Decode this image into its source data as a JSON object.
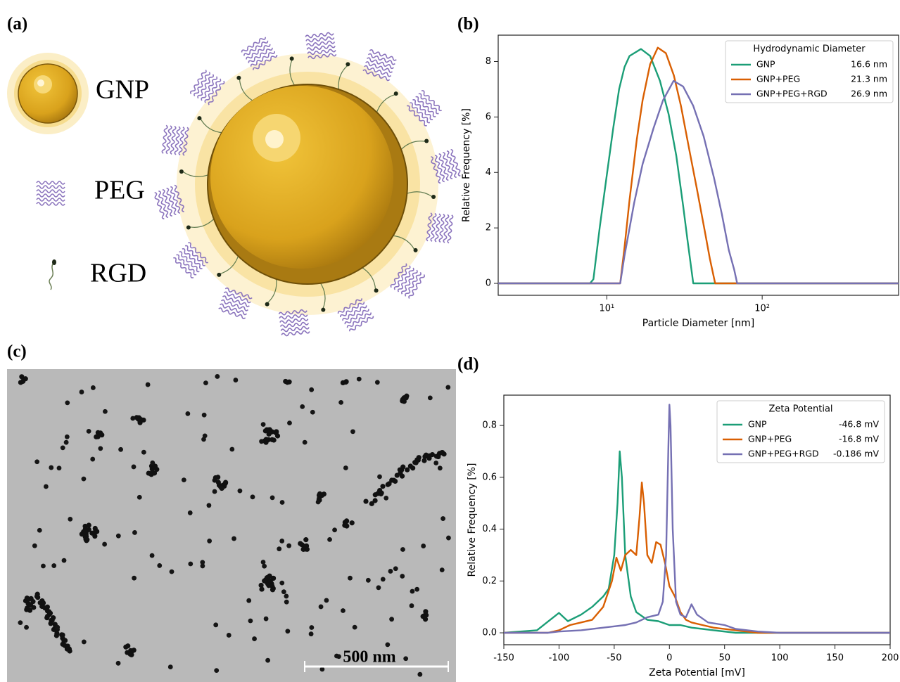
{
  "panel_labels": [
    "(a)",
    "(b)",
    "(c)",
    "(d)"
  ],
  "diagram": {
    "labels": [
      "GNP",
      "PEG",
      "RGD"
    ]
  },
  "micrograph": {
    "scale_bar": "500 nm"
  },
  "chart_data": [
    {
      "type": "line",
      "x_scale": "log",
      "xlabel": "Particle Diameter [nm]",
      "ylabel": "Relative Frequency [%]",
      "xlim": [
        2,
        755
      ],
      "xticks": [
        {
          "value": 10,
          "label": "10¹"
        },
        {
          "value": 100,
          "label": "10²"
        }
      ],
      "ylim": [
        -0.43,
        8.95
      ],
      "yticks": [
        0,
        2,
        4,
        6,
        8
      ],
      "legend": "upper right",
      "legend_title": "Hydrodynamic Diameter",
      "series": [
        {
          "name": "GNP",
          "color": "#1b9e77",
          "annotation": "16.6 nm",
          "x": [
            2,
            7.8,
            8.2,
            9,
            10,
            11,
            12,
            13,
            14,
            16.6,
            19,
            22,
            25,
            28,
            31,
            33,
            36,
            755
          ],
          "values": [
            0,
            0,
            0.15,
            2.0,
            3.9,
            5.6,
            7.0,
            7.8,
            8.2,
            8.45,
            8.2,
            7.3,
            6.1,
            4.6,
            2.8,
            1.6,
            0,
            0
          ]
        },
        {
          "name": "GNP+PEG",
          "color": "#d95f02",
          "annotation": "21.3 nm",
          "x": [
            2,
            12.2,
            13,
            14,
            15.6,
            17,
            19,
            21.3,
            24,
            27,
            30,
            34,
            38,
            43,
            46,
            49.8,
            755
          ],
          "values": [
            0,
            0,
            1.3,
            3.0,
            5.2,
            6.6,
            7.9,
            8.5,
            8.3,
            7.5,
            6.4,
            4.8,
            3.4,
            1.8,
            0.9,
            0,
            0
          ]
        },
        {
          "name": "GNP+PEG+RGD",
          "color": "#7570b3",
          "annotation": "26.9 nm",
          "x": [
            2,
            12.2,
            13,
            15,
            17,
            20,
            23,
            26.9,
            31,
            36,
            42,
            49,
            55,
            61,
            66,
            69,
            755
          ],
          "values": [
            0,
            0,
            1.0,
            2.9,
            4.3,
            5.6,
            6.6,
            7.3,
            7.1,
            6.4,
            5.3,
            3.8,
            2.5,
            1.2,
            0.5,
            0,
            0
          ]
        }
      ]
    },
    {
      "type": "line",
      "x_scale": "linear",
      "xlabel": "Zeta Potential [mV]",
      "ylabel": "Relative Frequency [%]",
      "xlim": [
        -150,
        200
      ],
      "xticks": [
        -150,
        -100,
        -50,
        0,
        50,
        100,
        150,
        200
      ],
      "ylim": [
        -0.046,
        0.917
      ],
      "yticks": [
        {
          "value": 0,
          "label": "0.0"
        },
        0.2,
        0.4,
        0.6,
        0.8
      ],
      "legend": "upper right",
      "legend_title": "Zeta Potential",
      "series": [
        {
          "name": "GNP",
          "color": "#1b9e77",
          "annotation": "-46.8 mV",
          "x": [
            -150,
            -120,
            -100,
            -92,
            -80,
            -70,
            -60,
            -55,
            -50,
            -47,
            -45,
            -43,
            -40,
            -35,
            -30,
            -20,
            -10,
            0,
            10,
            20,
            30,
            40,
            60,
            200
          ],
          "values": [
            0,
            0.01,
            0.077,
            0.045,
            0.07,
            0.1,
            0.14,
            0.17,
            0.3,
            0.5,
            0.7,
            0.6,
            0.3,
            0.14,
            0.08,
            0.05,
            0.045,
            0.03,
            0.03,
            0.02,
            0.015,
            0.01,
            0,
            0
          ]
        },
        {
          "name": "GNP+PEG",
          "color": "#d95f02",
          "annotation": "-16.8 mV",
          "x": [
            -150,
            -110,
            -100,
            -90,
            -80,
            -70,
            -60,
            -52,
            -48,
            -44,
            -40,
            -35,
            -30,
            -27,
            -25,
            -23,
            -20,
            -16,
            -12,
            -8,
            -4,
            0,
            5,
            10,
            15,
            20,
            30,
            40,
            60,
            80,
            200
          ],
          "values": [
            0,
            0,
            0.01,
            0.03,
            0.04,
            0.05,
            0.1,
            0.2,
            0.29,
            0.24,
            0.3,
            0.32,
            0.3,
            0.45,
            0.58,
            0.5,
            0.3,
            0.27,
            0.35,
            0.34,
            0.27,
            0.18,
            0.14,
            0.08,
            0.05,
            0.04,
            0.03,
            0.02,
            0.01,
            0,
            0
          ]
        },
        {
          "name": "GNP+PEG+RGD",
          "color": "#7570b3",
          "annotation": "-0.186 mV",
          "x": [
            -150,
            -110,
            -100,
            -80,
            -60,
            -40,
            -30,
            -20,
            -10,
            -6,
            -3,
            -1,
            0,
            1,
            3,
            6,
            10,
            15,
            20,
            25,
            35,
            50,
            60,
            80,
            100,
            200
          ],
          "values": [
            0,
            0,
            0.005,
            0.01,
            0.02,
            0.03,
            0.04,
            0.06,
            0.07,
            0.12,
            0.3,
            0.7,
            0.88,
            0.8,
            0.4,
            0.12,
            0.07,
            0.06,
            0.11,
            0.07,
            0.04,
            0.03,
            0.015,
            0.005,
            0,
            0
          ]
        }
      ]
    }
  ]
}
